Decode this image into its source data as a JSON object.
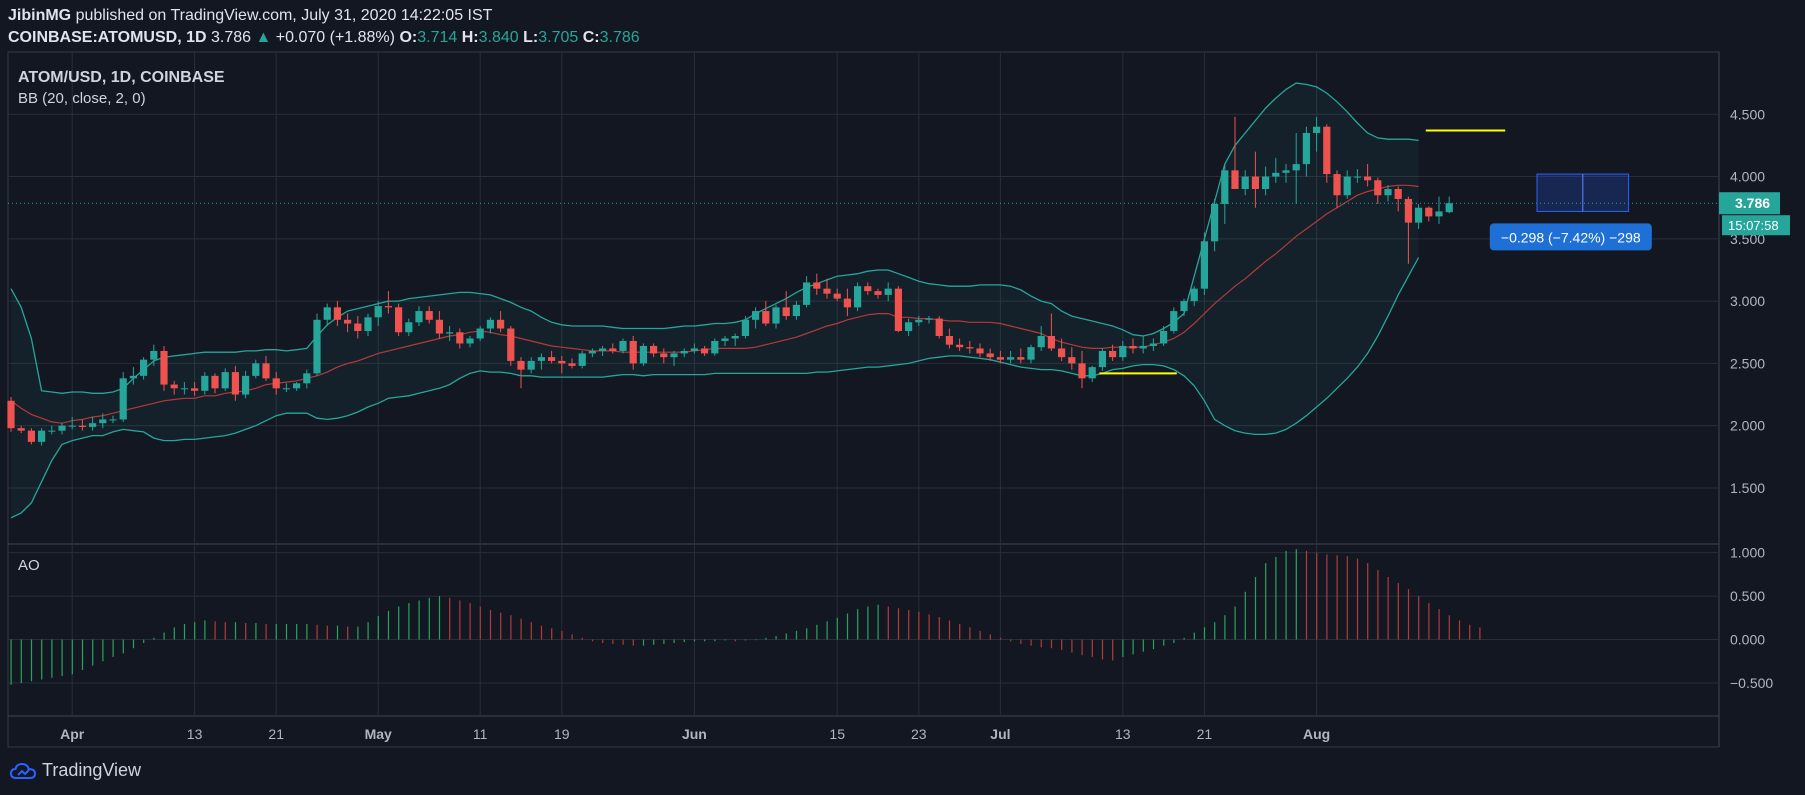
{
  "header": {
    "author": "JibinMG",
    "published_text": "published on TradingView.com, July 31, 2020 14:22:05 IST",
    "symbol": "COINBASE:ATOMUSD, 1D",
    "last": "3.786",
    "change": "+0.070 (+1.88%)",
    "open_label": "O:",
    "open": "3.714",
    "high_label": "H:",
    "high": "3.840",
    "low_label": "L:",
    "low": "3.705",
    "close_label": "C:",
    "close": "3.786"
  },
  "legend": {
    "title": "ATOM/USD, 1D, COINBASE",
    "indicator": "BB (20, close, 2, 0)",
    "oscillator": "AO"
  },
  "price_badge": "3.786",
  "timer_badge": "15:07:58",
  "measure_label": "−0.298 (−7.42%) −298",
  "footer_brand": "TradingView",
  "colors": {
    "background": "#131722",
    "up": "#26a69a",
    "down": "#ef5350",
    "band": "#26a69a",
    "basis": "#b33a3a",
    "support": "#ffff00",
    "ao_up": "#26a65b",
    "ao_down": "#b33a3a",
    "measure": "#1e6fd6"
  },
  "chart_data": {
    "type": "candlestick",
    "title": "ATOM/USD, 1D, COINBASE",
    "x_ticks": [
      "Apr",
      "13",
      "21",
      "May",
      "11",
      "19",
      "Jun",
      "15",
      "23",
      "Jul",
      "13",
      "21",
      "Aug"
    ],
    "y_ticks": [
      "4.500",
      "4.000",
      "3.500",
      "3.000",
      "2.500",
      "2.000",
      "1.500"
    ],
    "ylim": [
      1.05,
      5.0
    ],
    "ao_ticks": [
      "1.000",
      "0.500",
      "0.000",
      "−0.500"
    ],
    "ao_ylim": [
      -0.88,
      1.1
    ],
    "start_date": "2020-03-26",
    "candles": [
      [
        2.2,
        2.23,
        1.95,
        1.98
      ],
      [
        1.98,
        2.0,
        1.94,
        1.96
      ],
      [
        1.96,
        1.98,
        1.85,
        1.87
      ],
      [
        1.87,
        1.98,
        1.84,
        1.96
      ],
      [
        1.96,
        2.0,
        1.93,
        1.96
      ],
      [
        1.96,
        2.02,
        1.93,
        2.0
      ],
      [
        2.0,
        2.07,
        1.97,
        2.0
      ],
      [
        2.0,
        2.05,
        1.96,
        1.99
      ],
      [
        1.99,
        2.07,
        1.96,
        2.02
      ],
      [
        2.02,
        2.1,
        1.98,
        2.05
      ],
      [
        2.05,
        2.08,
        2.02,
        2.05
      ],
      [
        2.05,
        2.43,
        2.03,
        2.38
      ],
      [
        2.38,
        2.47,
        2.33,
        2.4
      ],
      [
        2.4,
        2.55,
        2.37,
        2.53
      ],
      [
        2.53,
        2.65,
        2.48,
        2.6
      ],
      [
        2.6,
        2.64,
        2.28,
        2.33
      ],
      [
        2.33,
        2.36,
        2.25,
        2.3
      ],
      [
        2.3,
        2.35,
        2.25,
        2.3
      ],
      [
        2.3,
        2.35,
        2.24,
        2.28
      ],
      [
        2.28,
        2.43,
        2.25,
        2.4
      ],
      [
        2.4,
        2.42,
        2.26,
        2.3
      ],
      [
        2.3,
        2.46,
        2.28,
        2.43
      ],
      [
        2.43,
        2.48,
        2.2,
        2.25
      ],
      [
        2.25,
        2.44,
        2.22,
        2.4
      ],
      [
        2.4,
        2.53,
        2.38,
        2.5
      ],
      [
        2.5,
        2.56,
        2.36,
        2.38
      ],
      [
        2.38,
        2.43,
        2.25,
        2.3
      ],
      [
        2.3,
        2.34,
        2.27,
        2.3
      ],
      [
        2.3,
        2.35,
        2.28,
        2.34
      ],
      [
        2.34,
        2.45,
        2.3,
        2.42
      ],
      [
        2.42,
        2.9,
        2.4,
        2.85
      ],
      [
        2.85,
        2.98,
        2.8,
        2.95
      ],
      [
        2.95,
        3.0,
        2.8,
        2.85
      ],
      [
        2.85,
        2.9,
        2.75,
        2.82
      ],
      [
        2.82,
        2.88,
        2.7,
        2.76
      ],
      [
        2.76,
        2.9,
        2.72,
        2.87
      ],
      [
        2.87,
        3.0,
        2.8,
        2.96
      ],
      [
        2.96,
        3.08,
        2.9,
        2.95
      ],
      [
        2.95,
        2.98,
        2.72,
        2.75
      ],
      [
        2.75,
        2.86,
        2.72,
        2.83
      ],
      [
        2.83,
        2.96,
        2.8,
        2.92
      ],
      [
        2.92,
        2.96,
        2.82,
        2.85
      ],
      [
        2.85,
        2.92,
        2.7,
        2.74
      ],
      [
        2.74,
        2.8,
        2.68,
        2.75
      ],
      [
        2.75,
        2.78,
        2.62,
        2.66
      ],
      [
        2.66,
        2.72,
        2.63,
        2.7
      ],
      [
        2.7,
        2.8,
        2.68,
        2.78
      ],
      [
        2.78,
        2.87,
        2.74,
        2.85
      ],
      [
        2.85,
        2.92,
        2.75,
        2.78
      ],
      [
        2.78,
        2.8,
        2.48,
        2.52
      ],
      [
        2.52,
        2.55,
        2.3,
        2.45
      ],
      [
        2.45,
        2.55,
        2.42,
        2.52
      ],
      [
        2.52,
        2.58,
        2.45,
        2.55
      ],
      [
        2.55,
        2.6,
        2.5,
        2.52
      ],
      [
        2.52,
        2.56,
        2.42,
        2.5
      ],
      [
        2.5,
        2.54,
        2.46,
        2.48
      ],
      [
        2.48,
        2.6,
        2.46,
        2.58
      ],
      [
        2.58,
        2.62,
        2.55,
        2.6
      ],
      [
        2.6,
        2.64,
        2.56,
        2.62
      ],
      [
        2.62,
        2.66,
        2.58,
        2.6
      ],
      [
        2.6,
        2.7,
        2.58,
        2.68
      ],
      [
        2.68,
        2.72,
        2.45,
        2.5
      ],
      [
        2.5,
        2.66,
        2.48,
        2.64
      ],
      [
        2.64,
        2.66,
        2.55,
        2.58
      ],
      [
        2.58,
        2.62,
        2.5,
        2.55
      ],
      [
        2.55,
        2.6,
        2.48,
        2.58
      ],
      [
        2.58,
        2.62,
        2.55,
        2.6
      ],
      [
        2.6,
        2.66,
        2.58,
        2.62
      ],
      [
        2.62,
        2.64,
        2.56,
        2.58
      ],
      [
        2.58,
        2.7,
        2.56,
        2.68
      ],
      [
        2.68,
        2.72,
        2.64,
        2.7
      ],
      [
        2.7,
        2.74,
        2.64,
        2.72
      ],
      [
        2.72,
        2.88,
        2.7,
        2.85
      ],
      [
        2.85,
        2.95,
        2.78,
        2.92
      ],
      [
        2.92,
        3.0,
        2.8,
        2.82
      ],
      [
        2.82,
        2.97,
        2.78,
        2.95
      ],
      [
        2.95,
        3.08,
        2.85,
        2.88
      ],
      [
        2.88,
        3.0,
        2.85,
        2.97
      ],
      [
        2.97,
        3.2,
        2.95,
        3.15
      ],
      [
        3.15,
        3.22,
        3.05,
        3.1
      ],
      [
        3.1,
        3.18,
        3.02,
        3.06
      ],
      [
        3.06,
        3.1,
        3.0,
        3.02
      ],
      [
        3.02,
        3.1,
        2.88,
        2.95
      ],
      [
        2.95,
        3.15,
        2.92,
        3.12
      ],
      [
        3.12,
        3.15,
        3.05,
        3.08
      ],
      [
        3.08,
        3.1,
        3.02,
        3.05
      ],
      [
        3.05,
        3.15,
        3.0,
        3.1
      ],
      [
        3.1,
        3.12,
        2.75,
        2.76
      ],
      [
        2.76,
        2.86,
        2.72,
        2.83
      ],
      [
        2.83,
        2.88,
        2.8,
        2.85
      ],
      [
        2.85,
        2.88,
        2.82,
        2.86
      ],
      [
        2.86,
        2.88,
        2.7,
        2.72
      ],
      [
        2.72,
        2.78,
        2.62,
        2.65
      ],
      [
        2.65,
        2.7,
        2.6,
        2.63
      ],
      [
        2.63,
        2.68,
        2.58,
        2.62
      ],
      [
        2.62,
        2.66,
        2.55,
        2.58
      ],
      [
        2.58,
        2.62,
        2.52,
        2.55
      ],
      [
        2.55,
        2.6,
        2.5,
        2.53
      ],
      [
        2.53,
        2.6,
        2.5,
        2.55
      ],
      [
        2.55,
        2.62,
        2.5,
        2.53
      ],
      [
        2.53,
        2.65,
        2.5,
        2.63
      ],
      [
        2.63,
        2.8,
        2.6,
        2.72
      ],
      [
        2.72,
        2.9,
        2.6,
        2.62
      ],
      [
        2.62,
        2.7,
        2.52,
        2.55
      ],
      [
        2.55,
        2.63,
        2.45,
        2.5
      ],
      [
        2.5,
        2.6,
        2.3,
        2.38
      ],
      [
        2.38,
        2.48,
        2.35,
        2.47
      ],
      [
        2.47,
        2.62,
        2.44,
        2.6
      ],
      [
        2.6,
        2.65,
        2.52,
        2.55
      ],
      [
        2.55,
        2.68,
        2.52,
        2.64
      ],
      [
        2.64,
        2.7,
        2.58,
        2.62
      ],
      [
        2.62,
        2.72,
        2.58,
        2.64
      ],
      [
        2.64,
        2.7,
        2.6,
        2.66
      ],
      [
        2.66,
        2.8,
        2.64,
        2.76
      ],
      [
        2.76,
        2.95,
        2.74,
        2.92
      ],
      [
        2.92,
        3.02,
        2.88,
        3.0
      ],
      [
        3.0,
        3.12,
        2.96,
        3.1
      ],
      [
        3.1,
        3.55,
        3.05,
        3.48
      ],
      [
        3.48,
        3.82,
        3.4,
        3.78
      ],
      [
        3.78,
        4.1,
        3.62,
        4.05
      ],
      [
        4.05,
        4.48,
        3.9,
        3.9
      ],
      [
        3.9,
        4.05,
        3.85,
        4.0
      ],
      [
        4.0,
        4.2,
        3.75,
        3.9
      ],
      [
        3.9,
        4.08,
        3.85,
        4.0
      ],
      [
        4.0,
        4.15,
        3.95,
        4.03
      ],
      [
        4.03,
        4.1,
        3.95,
        4.05
      ],
      [
        4.05,
        4.35,
        3.78,
        4.1
      ],
      [
        4.1,
        4.4,
        4.0,
        4.35
      ],
      [
        4.35,
        4.48,
        4.2,
        4.4
      ],
      [
        4.4,
        4.42,
        3.95,
        4.02
      ],
      [
        4.02,
        4.05,
        3.75,
        3.85
      ],
      [
        3.85,
        4.05,
        3.82,
        4.0
      ],
      [
        4.0,
        4.06,
        3.95,
        4.0
      ],
      [
        4.0,
        4.1,
        3.92,
        3.97
      ],
      [
        3.97,
        3.99,
        3.78,
        3.85
      ],
      [
        3.85,
        3.93,
        3.8,
        3.9
      ],
      [
        3.9,
        3.92,
        3.72,
        3.82
      ],
      [
        3.82,
        3.84,
        3.3,
        3.63
      ],
      [
        3.63,
        3.78,
        3.58,
        3.75
      ],
      [
        3.75,
        3.76,
        3.64,
        3.68
      ],
      [
        3.68,
        3.84,
        3.62,
        3.72
      ],
      [
        3.714,
        3.84,
        3.705,
        3.786
      ]
    ],
    "bb_upper": [
      3.1,
      2.95,
      2.7,
      2.28,
      2.27,
      2.26,
      2.27,
      2.27,
      2.26,
      2.26,
      2.27,
      2.3,
      2.38,
      2.45,
      2.52,
      2.55,
      2.56,
      2.57,
      2.58,
      2.59,
      2.59,
      2.59,
      2.59,
      2.6,
      2.6,
      2.61,
      2.61,
      2.6,
      2.61,
      2.62,
      2.72,
      2.81,
      2.87,
      2.92,
      2.94,
      2.96,
      2.98,
      3.0,
      3.0,
      3.02,
      3.03,
      3.04,
      3.05,
      3.06,
      3.07,
      3.07,
      3.06,
      3.05,
      3.02,
      2.99,
      2.95,
      2.92,
      2.87,
      2.83,
      2.81,
      2.8,
      2.8,
      2.8,
      2.8,
      2.79,
      2.78,
      2.78,
      2.78,
      2.78,
      2.78,
      2.79,
      2.8,
      2.8,
      2.81,
      2.82,
      2.82,
      2.83,
      2.85,
      2.9,
      2.94,
      2.98,
      3.02,
      3.07,
      3.11,
      3.14,
      3.17,
      3.2,
      3.21,
      3.22,
      3.24,
      3.25,
      3.25,
      3.22,
      3.19,
      3.16,
      3.14,
      3.13,
      3.12,
      3.12,
      3.12,
      3.13,
      3.13,
      3.13,
      3.12,
      3.09,
      3.04,
      3.0,
      2.98,
      2.92,
      2.88,
      2.86,
      2.84,
      2.82,
      2.8,
      2.77,
      2.73,
      2.72,
      2.74,
      2.78,
      2.83,
      2.9,
      3.2,
      3.5,
      3.8,
      4.1,
      4.25,
      4.35,
      4.45,
      4.55,
      4.63,
      4.7,
      4.75,
      4.74,
      4.72,
      4.67,
      4.6,
      4.52,
      4.43,
      4.35,
      4.31,
      4.3,
      4.3,
      4.3,
      4.29
    ],
    "bb_lower": [
      1.26,
      1.3,
      1.38,
      1.55,
      1.72,
      1.85,
      1.88,
      1.9,
      1.92,
      1.92,
      1.95,
      1.97,
      1.96,
      1.95,
      1.9,
      1.88,
      1.88,
      1.89,
      1.89,
      1.9,
      1.91,
      1.92,
      1.94,
      1.97,
      2.0,
      2.04,
      2.08,
      2.1,
      2.1,
      2.1,
      2.06,
      2.05,
      2.06,
      2.08,
      2.11,
      2.15,
      2.18,
      2.22,
      2.23,
      2.24,
      2.26,
      2.28,
      2.3,
      2.33,
      2.38,
      2.42,
      2.44,
      2.43,
      2.43,
      2.42,
      2.4,
      2.4,
      2.39,
      2.39,
      2.39,
      2.39,
      2.39,
      2.39,
      2.39,
      2.4,
      2.41,
      2.41,
      2.4,
      2.41,
      2.41,
      2.41,
      2.41,
      2.41,
      2.41,
      2.42,
      2.42,
      2.42,
      2.42,
      2.42,
      2.42,
      2.42,
      2.42,
      2.42,
      2.42,
      2.43,
      2.43,
      2.44,
      2.45,
      2.46,
      2.47,
      2.47,
      2.48,
      2.49,
      2.5,
      2.52,
      2.54,
      2.55,
      2.56,
      2.56,
      2.55,
      2.54,
      2.53,
      2.51,
      2.49,
      2.47,
      2.46,
      2.45,
      2.45,
      2.44,
      2.42,
      2.4,
      2.4,
      2.42,
      2.45,
      2.46,
      2.48,
      2.49,
      2.49,
      2.48,
      2.45,
      2.4,
      2.32,
      2.2,
      2.05,
      2.0,
      1.96,
      1.94,
      1.93,
      1.93,
      1.94,
      1.97,
      2.02,
      2.08,
      2.15,
      2.22,
      2.3,
      2.38,
      2.47,
      2.58,
      2.72,
      2.88,
      3.05,
      3.2,
      3.35
    ],
    "bb_basis": [
      2.2,
      2.14,
      2.09,
      2.06,
      2.03,
      2.02,
      2.04,
      2.05,
      2.07,
      2.08,
      2.1,
      2.12,
      2.14,
      2.16,
      2.18,
      2.2,
      2.21,
      2.22,
      2.22,
      2.24,
      2.24,
      2.26,
      2.27,
      2.28,
      2.3,
      2.33,
      2.34,
      2.35,
      2.36,
      2.38,
      2.4,
      2.43,
      2.47,
      2.5,
      2.52,
      2.55,
      2.58,
      2.6,
      2.62,
      2.64,
      2.66,
      2.68,
      2.7,
      2.72,
      2.73,
      2.75,
      2.76,
      2.75,
      2.73,
      2.72,
      2.7,
      2.68,
      2.66,
      2.64,
      2.63,
      2.62,
      2.61,
      2.6,
      2.6,
      2.6,
      2.59,
      2.59,
      2.59,
      2.59,
      2.59,
      2.59,
      2.59,
      2.6,
      2.61,
      2.62,
      2.62,
      2.62,
      2.62,
      2.63,
      2.65,
      2.67,
      2.69,
      2.71,
      2.74,
      2.77,
      2.8,
      2.82,
      2.85,
      2.87,
      2.89,
      2.9,
      2.9,
      2.87,
      2.87,
      2.86,
      2.86,
      2.85,
      2.84,
      2.84,
      2.83,
      2.83,
      2.83,
      2.82,
      2.8,
      2.78,
      2.76,
      2.74,
      2.7,
      2.67,
      2.65,
      2.63,
      2.62,
      2.62,
      2.63,
      2.63,
      2.63,
      2.63,
      2.65,
      2.67,
      2.7,
      2.75,
      2.82,
      2.9,
      2.98,
      3.05,
      3.12,
      3.18,
      3.25,
      3.32,
      3.38,
      3.45,
      3.52,
      3.58,
      3.64,
      3.7,
      3.75,
      3.8,
      3.85,
      3.88,
      3.9,
      3.92,
      3.93,
      3.93,
      3.92
    ],
    "ao": [
      -0.52,
      -0.5,
      -0.48,
      -0.46,
      -0.44,
      -0.42,
      -0.4,
      -0.35,
      -0.3,
      -0.25,
      -0.2,
      -0.16,
      -0.1,
      -0.04,
      0.02,
      0.08,
      0.14,
      0.18,
      0.2,
      0.22,
      0.21,
      0.2,
      0.2,
      0.19,
      0.19,
      0.18,
      0.18,
      0.18,
      0.18,
      0.18,
      0.17,
      0.16,
      0.16,
      0.15,
      0.15,
      0.2,
      0.27,
      0.33,
      0.38,
      0.42,
      0.45,
      0.48,
      0.5,
      0.48,
      0.45,
      0.42,
      0.38,
      0.34,
      0.31,
      0.28,
      0.24,
      0.2,
      0.16,
      0.13,
      0.1,
      0.06,
      0.02,
      -0.02,
      -0.04,
      -0.05,
      -0.06,
      -0.07,
      -0.07,
      -0.06,
      -0.05,
      -0.04,
      -0.03,
      -0.02,
      -0.02,
      -0.02,
      -0.01,
      -0.02,
      -0.01,
      0.0,
      0.02,
      0.04,
      0.07,
      0.1,
      0.13,
      0.17,
      0.21,
      0.25,
      0.3,
      0.35,
      0.38,
      0.4,
      0.38,
      0.36,
      0.34,
      0.32,
      0.29,
      0.26,
      0.22,
      0.18,
      0.14,
      0.1,
      0.06,
      0.02,
      -0.02,
      -0.05,
      -0.07,
      -0.09,
      -0.1,
      -0.12,
      -0.15,
      -0.18,
      -0.2,
      -0.23,
      -0.24,
      -0.2,
      -0.17,
      -0.14,
      -0.11,
      -0.07,
      -0.04,
      0.02,
      0.08,
      0.14,
      0.2,
      0.28,
      0.38,
      0.55,
      0.72,
      0.88,
      0.95,
      1.02,
      1.04,
      1.02,
      1.0,
      0.98,
      0.97,
      0.96,
      0.93,
      0.88,
      0.8,
      0.72,
      0.65,
      0.58,
      0.5,
      0.42,
      0.35,
      0.28,
      0.22,
      0.17,
      0.14
    ]
  }
}
